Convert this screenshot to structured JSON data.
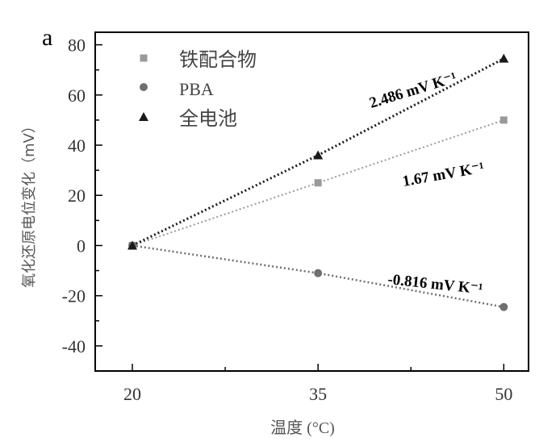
{
  "panel_label": "a",
  "colors": {
    "frame": "#000000",
    "iron_series": "#9a9a9a",
    "pba_series": "#6f6f6f",
    "full_series": "#1a1a1a",
    "annotation": "#000000"
  },
  "chart_data": {
    "type": "scatter",
    "xlabel": "温度 (°C)",
    "ylabel": "氧化还原电位变化（mV）",
    "xlim": [
      17,
      52
    ],
    "ylim": [
      -50,
      85
    ],
    "x_ticks": [
      20,
      35,
      50
    ],
    "x_tick_labels": [
      "20",
      "35",
      "50"
    ],
    "y_ticks": [
      80,
      60,
      40,
      20,
      0,
      -20,
      -40
    ],
    "y_tick_labels": [
      "80",
      "60",
      "40",
      "20",
      "0",
      "-20",
      "-40"
    ],
    "series": [
      {
        "name": "铁配合物",
        "marker": "square",
        "x": [
          20,
          35,
          50
        ],
        "y": [
          0,
          25,
          50
        ],
        "slope_label": "1.67 mV K⁻¹"
      },
      {
        "name": "PBA",
        "marker": "circle",
        "x": [
          20,
          35,
          50
        ],
        "y": [
          0,
          -11,
          -24.5
        ],
        "slope_label": "-0.816 mV K⁻¹"
      },
      {
        "name": "全电池",
        "marker": "triangle",
        "x": [
          20,
          35,
          50
        ],
        "y": [
          0,
          36,
          74.5
        ],
        "slope_label": "2.486 mV K⁻¹"
      }
    ],
    "legend_position": "top-left"
  }
}
